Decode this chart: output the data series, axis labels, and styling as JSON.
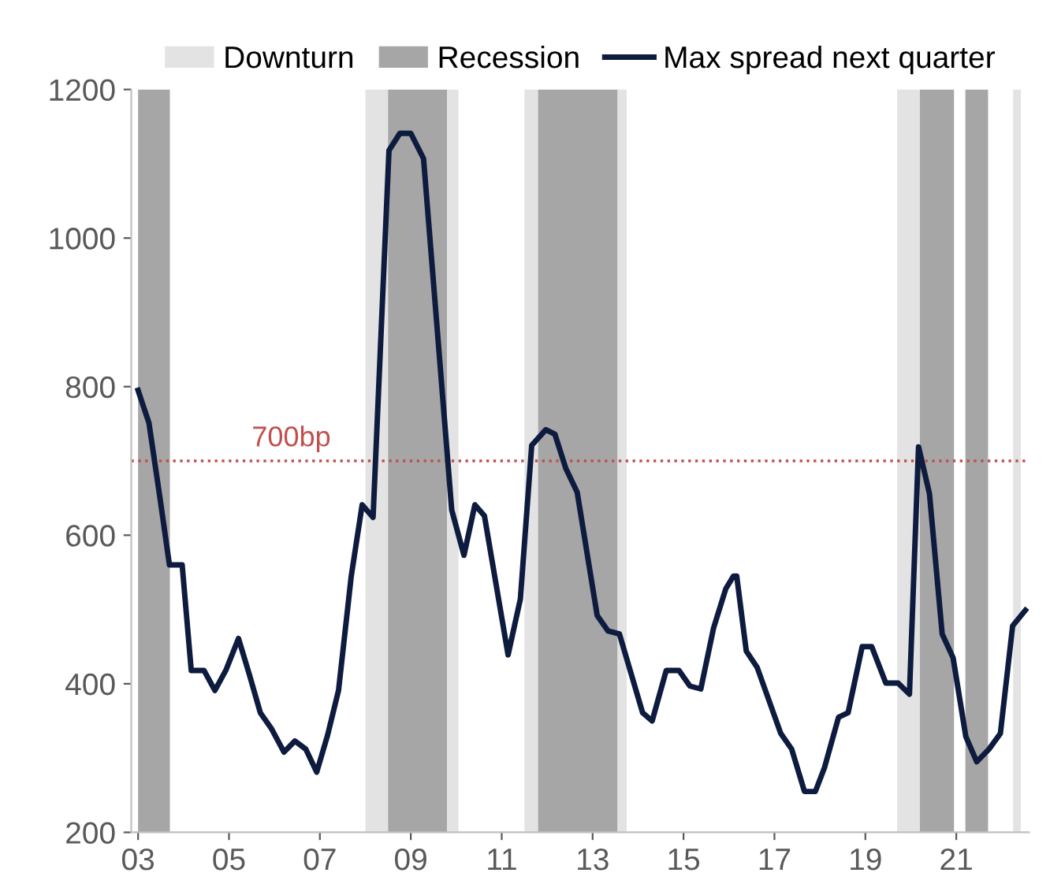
{
  "chart_data": {
    "type": "line",
    "x": [
      2003.0,
      2003.24,
      2003.48,
      2003.69,
      2003.97,
      2004.17,
      2004.45,
      2004.69,
      2004.93,
      2005.21,
      2005.45,
      2005.69,
      2005.93,
      2006.21,
      2006.45,
      2006.69,
      2006.93,
      2007.17,
      2007.41,
      2007.69,
      2007.93,
      2008.17,
      2008.52,
      2008.76,
      2009.0,
      2009.28,
      2009.9,
      2010.17,
      2010.41,
      2010.62,
      2011.14,
      2011.41,
      2011.66,
      2011.97,
      2012.17,
      2012.41,
      2012.66,
      2013.1,
      2013.34,
      2013.59,
      2014.1,
      2014.31,
      2014.62,
      2014.9,
      2015.14,
      2015.38,
      2015.66,
      2015.93,
      2016.1,
      2016.17,
      2016.38,
      2016.62,
      2017.14,
      2017.38,
      2017.66,
      2017.9,
      2018.1,
      2018.41,
      2018.62,
      2018.93,
      2019.14,
      2019.45,
      2019.72,
      2019.97,
      2020.17,
      2020.41,
      2020.69,
      2020.93,
      2021.21,
      2021.45,
      2021.72,
      2021.97,
      2022.24,
      2022.52
    ],
    "series": [
      {
        "name": "Max spread next quarter",
        "color": "#0d1b3e",
        "values": [
          795,
          751,
          651,
          560,
          560,
          418,
          418,
          391,
          418,
          461,
          412,
          361,
          340,
          308,
          323,
          312,
          281,
          331,
          391,
          545,
          641,
          624,
          1118,
          1141,
          1141,
          1107,
          634,
          573,
          641,
          626,
          439,
          514,
          721,
          742,
          736,
          690,
          658,
          492,
          471,
          467,
          361,
          350,
          418,
          418,
          397,
          393,
          475,
          528,
          545,
          545,
          444,
          422,
          333,
          312,
          255,
          255,
          287,
          355,
          361,
          450,
          450,
          401,
          401,
          386,
          719,
          656,
          467,
          435,
          329,
          295,
          312,
          333,
          478,
          499
        ]
      }
    ],
    "ylim": [
      200,
      1200
    ],
    "yticks": [
      200,
      400,
      600,
      800,
      1000,
      1200
    ],
    "xlim": [
      2002.85,
      2022.6
    ],
    "xticks": [
      {
        "value": 2003,
        "label": "03"
      },
      {
        "value": 2005,
        "label": "05"
      },
      {
        "value": 2007,
        "label": "07"
      },
      {
        "value": 2009,
        "label": "09"
      },
      {
        "value": 2011,
        "label": "11"
      },
      {
        "value": 2013,
        "label": "13"
      },
      {
        "value": 2015,
        "label": "15"
      },
      {
        "value": 2017,
        "label": "17"
      },
      {
        "value": 2019,
        "label": "19"
      },
      {
        "value": 2021,
        "label": "21"
      }
    ],
    "bands": [
      {
        "axis": "x",
        "from": 2008.0,
        "to": 2008.5,
        "label": "Downturn",
        "color": "#e3e3e3"
      },
      {
        "axis": "x",
        "from": 2003.0,
        "to": 2003.7,
        "label": "Recession",
        "color": "#a6a6a6"
      },
      {
        "axis": "x",
        "from": 2008.5,
        "to": 2009.8,
        "color": "#a6a6a6"
      },
      {
        "axis": "x",
        "from": 2009.8,
        "to": 2010.05,
        "color": "#e3e3e3"
      },
      {
        "axis": "x",
        "from": 2011.5,
        "to": 2011.8,
        "color": "#e3e3e3"
      },
      {
        "axis": "x",
        "from": 2011.8,
        "to": 2013.55,
        "color": "#a6a6a6"
      },
      {
        "axis": "x",
        "from": 2013.55,
        "to": 2013.75,
        "color": "#e3e3e3"
      },
      {
        "axis": "x",
        "from": 2019.7,
        "to": 2020.2,
        "color": "#e3e3e3"
      },
      {
        "axis": "x",
        "from": 2020.2,
        "to": 2020.95,
        "color": "#a6a6a6"
      },
      {
        "axis": "x",
        "from": 2021.2,
        "to": 2021.7,
        "color": "#a6a6a6"
      },
      {
        "axis": "x",
        "from": 2022.25,
        "to": 2022.42,
        "color": "#e3e3e3"
      }
    ],
    "ref_lines": [
      {
        "axis": "y",
        "value": 700,
        "label": "700bp",
        "color": "#c0504d",
        "line_style": "dotted"
      }
    ],
    "legend": "top",
    "grid": false,
    "marker": "none",
    "line_style": "solid"
  }
}
